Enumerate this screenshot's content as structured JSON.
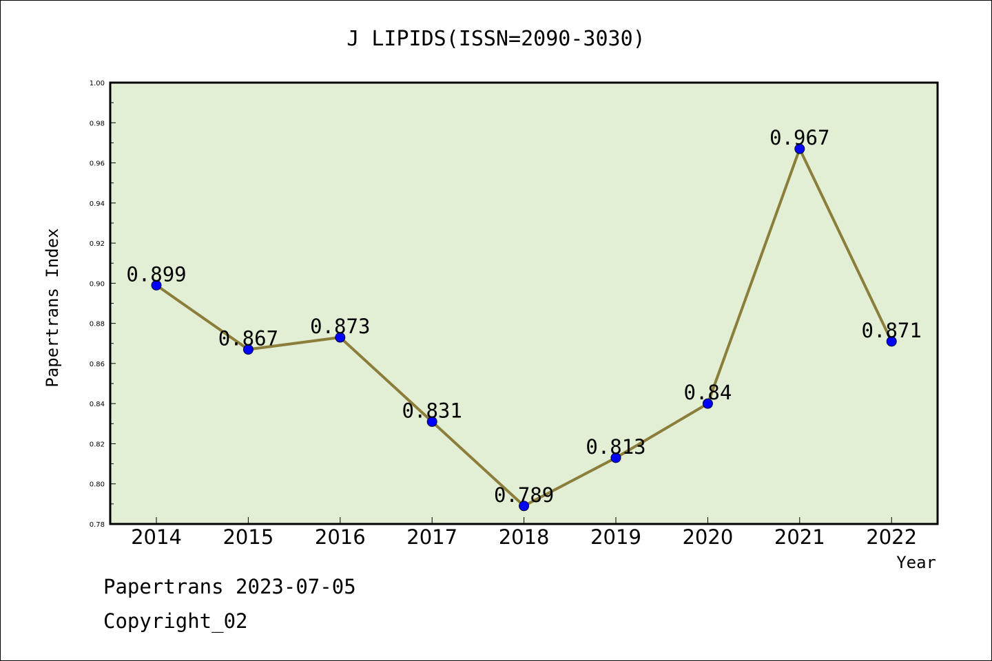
{
  "chart_data": {
    "type": "line",
    "title": "J LIPIDS(ISSN=2090-3030)",
    "xlabel": "Year",
    "ylabel": "Papertrans Index",
    "categories": [
      "2014",
      "2015",
      "2016",
      "2017",
      "2018",
      "2019",
      "2020",
      "2021",
      "2022"
    ],
    "values": [
      0.899,
      0.867,
      0.873,
      0.831,
      0.789,
      0.813,
      0.84,
      0.967,
      0.871
    ],
    "data_labels": [
      "0.899",
      "0.867",
      "0.873",
      "0.831",
      "0.789",
      "0.813",
      "0.84",
      "0.967",
      "0.871"
    ],
    "ylim": [
      0.78,
      1.0
    ],
    "yticks": [
      "0.78",
      "0.80",
      "0.82",
      "0.84",
      "0.86",
      "0.88",
      "0.90",
      "0.92",
      "0.94",
      "0.96",
      "0.98",
      "1.00"
    ],
    "grid": false,
    "colors": {
      "plot_background": "#e2efd5",
      "line": "#8b7d3a",
      "marker": "#0000ff"
    }
  },
  "footer": {
    "line1": "Papertrans 2023-07-05",
    "line2": "Copyright_02"
  }
}
